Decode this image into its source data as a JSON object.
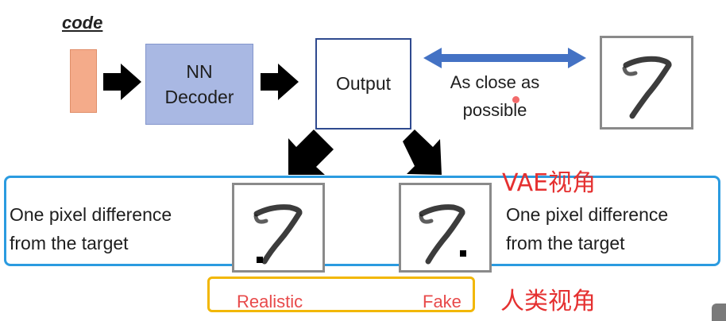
{
  "code_label": "code",
  "decoder": {
    "line1": "NN",
    "line2": "Decoder"
  },
  "output_label": "Output",
  "close": {
    "line1": "As close as",
    "line2": "possible"
  },
  "vae_view_label": "VAE视角",
  "left_text": {
    "line1": "One pixel difference",
    "line2": "from the target"
  },
  "right_text": {
    "line1": "One pixel difference",
    "line2": "from the target"
  },
  "human": {
    "realistic": "Realistic",
    "fake": "Fake"
  },
  "human_view_label": "人类视角",
  "colors": {
    "code_bar": "#f4ab8a",
    "decoder": "#a9b8e3",
    "output_border": "#2f4a8f",
    "double_arrow": "#4472c4",
    "vae_box": "#2b9be0",
    "human_box": "#f2b705",
    "red_text": "#e53030"
  },
  "icons": [
    "black-arrow-right-icon",
    "black-arrow-down-left-icon",
    "black-arrow-down-right-icon",
    "blue-double-arrow-icon"
  ]
}
